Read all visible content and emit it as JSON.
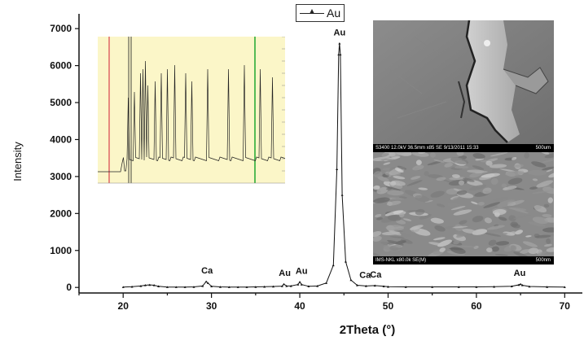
{
  "chart_data": {
    "type": "line",
    "xlabel": "2Theta (°)",
    "ylabel": "Intensity",
    "xlim": [
      15,
      72
    ],
    "ylim": [
      -150,
      7400
    ],
    "x_ticks": [
      20,
      30,
      40,
      50,
      60,
      70
    ],
    "y_ticks": [
      0,
      1000,
      2000,
      3000,
      4000,
      5000,
      6000,
      7000
    ],
    "legend": {
      "position": "top-center",
      "entries": [
        "Au"
      ]
    },
    "series": [
      {
        "name": "Au",
        "x": [
          20,
          21,
          22,
          22.5,
          23,
          23.5,
          24,
          25,
          26,
          27,
          28,
          29,
          29.4,
          29.6,
          30,
          31,
          32,
          33,
          34,
          35,
          36,
          37,
          38,
          38.2,
          38.5,
          39,
          39.8,
          40,
          40.2,
          41,
          42,
          43,
          43.8,
          44.2,
          44.4,
          44.5,
          44.6,
          44.8,
          45.2,
          45.8,
          46.5,
          47.5,
          48.5,
          49.5,
          50,
          52,
          55,
          58,
          60,
          62,
          64,
          64.8,
          65,
          65.2,
          66,
          68,
          70
        ],
        "y": [
          10,
          20,
          40,
          60,
          70,
          60,
          30,
          10,
          10,
          10,
          15,
          40,
          160,
          120,
          30,
          15,
          10,
          10,
          10,
          15,
          20,
          25,
          35,
          90,
          40,
          40,
          80,
          150,
          80,
          30,
          40,
          120,
          600,
          3200,
          6300,
          6600,
          6300,
          2500,
          700,
          200,
          60,
          40,
          50,
          30,
          20,
          15,
          15,
          15,
          15,
          20,
          30,
          70,
          90,
          60,
          25,
          15,
          10
        ]
      }
    ],
    "annotations": [
      {
        "text": "Ca",
        "x": 29.5
      },
      {
        "text": "Au",
        "x": 38.3
      },
      {
        "text": "Au",
        "x": 40.2
      },
      {
        "text": "Au",
        "x": 44.5
      },
      {
        "text": "Ca",
        "x": 47.4
      },
      {
        "text": "Ca",
        "x": 48.6
      },
      {
        "text": "Au",
        "x": 64.9
      }
    ]
  },
  "sem_images": {
    "top_caption": "S3400 12.0kV 36.5mm x85 SE  9/13/2011 15:33",
    "top_scale": "500um",
    "bottom_caption": "IMS-NKL x80.0k SE(M)",
    "bottom_scale": "500nm"
  },
  "colors": {
    "inset_background": "#fbf6c8",
    "inset_red_line": "#e06666",
    "inset_green_line": "#55bb55"
  }
}
